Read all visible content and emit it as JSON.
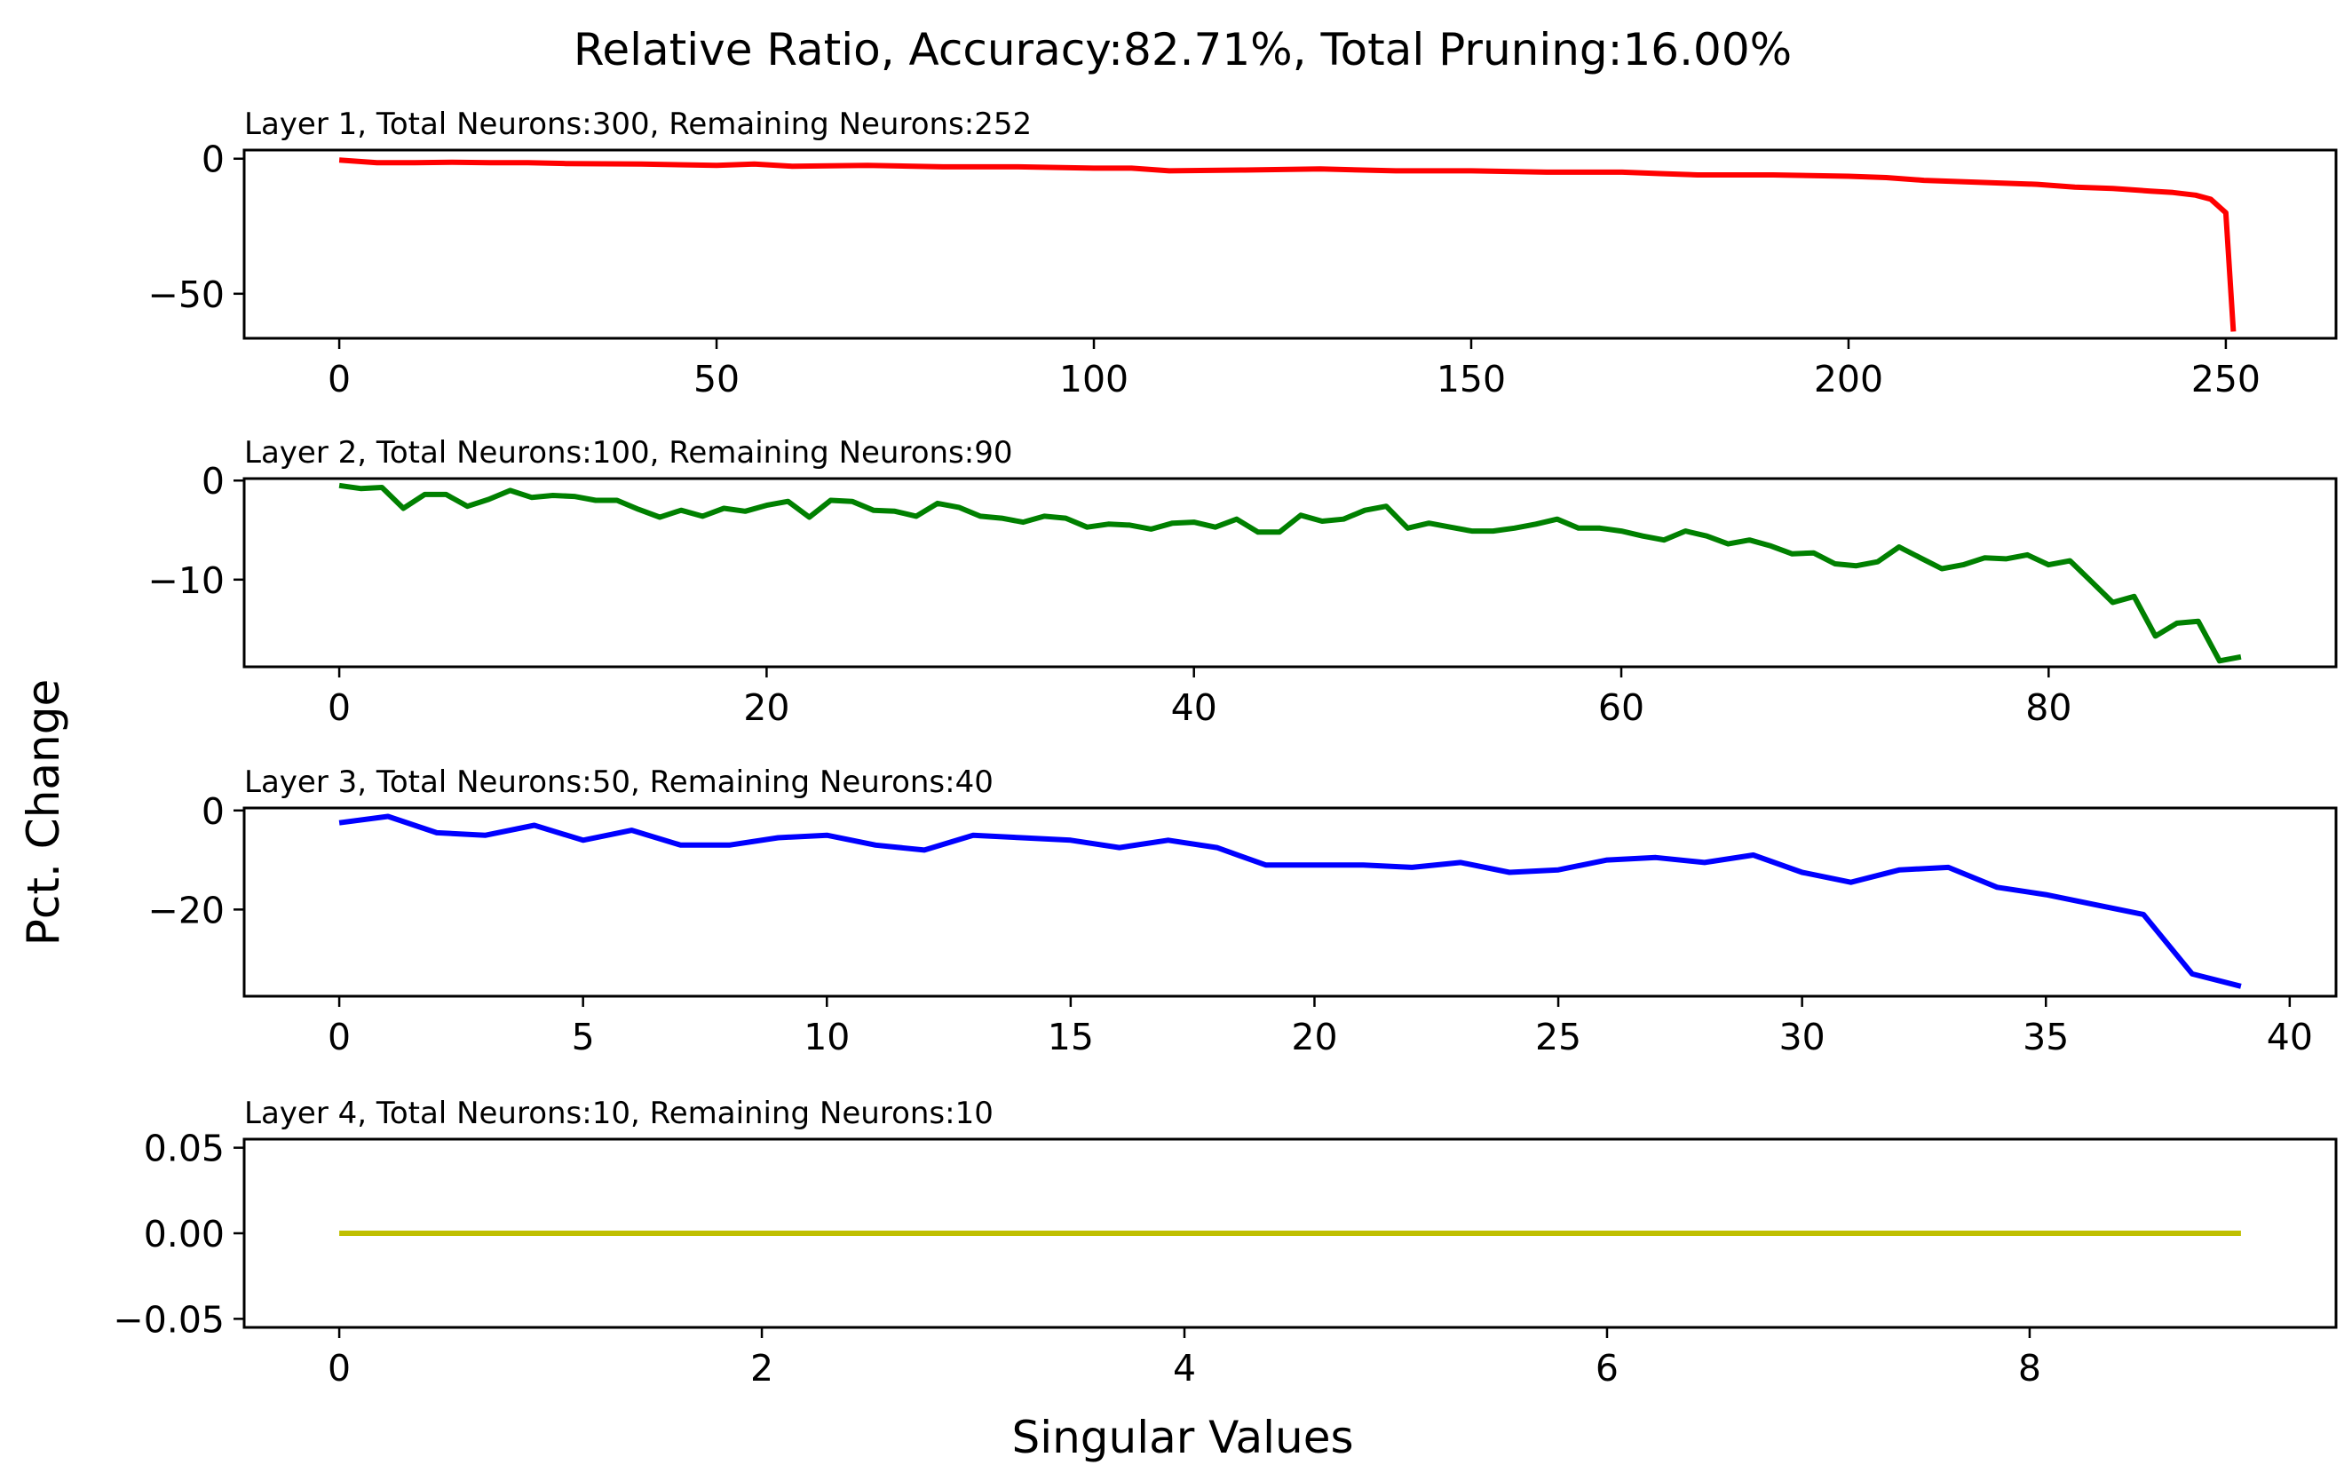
{
  "figure": {
    "title": "Relative Ratio, Accuracy:82.71%, Total Pruning:16.00%",
    "xlabel": "Singular Values",
    "ylabel": "Pct. Change"
  },
  "chart_data": [
    {
      "type": "line",
      "title": "Layer 1, Total Neurons:300, Remaining Neurons:252",
      "color": "#ff0000",
      "xlim": [
        -12.6,
        264.6
      ],
      "ylim": [
        -66.5,
        3.2
      ],
      "xticks": [
        0,
        50,
        100,
        150,
        200,
        250
      ],
      "yticks": [
        0,
        -50
      ],
      "ytick_labels": [
        "0",
        "−50"
      ],
      "points": [
        [
          0,
          -0.5
        ],
        [
          5,
          -1.5
        ],
        [
          10,
          -1.5
        ],
        [
          15,
          -1.3
        ],
        [
          20,
          -1.5
        ],
        [
          25,
          -1.5
        ],
        [
          30,
          -1.8
        ],
        [
          40,
          -2.0
        ],
        [
          50,
          -2.5
        ],
        [
          55,
          -2.0
        ],
        [
          60,
          -2.8
        ],
        [
          70,
          -2.5
        ],
        [
          80,
          -3.0
        ],
        [
          90,
          -3.0
        ],
        [
          100,
          -3.5
        ],
        [
          105,
          -3.5
        ],
        [
          110,
          -4.5
        ],
        [
          120,
          -4.2
        ],
        [
          130,
          -3.8
        ],
        [
          140,
          -4.5
        ],
        [
          150,
          -4.5
        ],
        [
          160,
          -5.0
        ],
        [
          170,
          -5.0
        ],
        [
          175,
          -5.5
        ],
        [
          180,
          -6.0
        ],
        [
          190,
          -6.0
        ],
        [
          200,
          -6.5
        ],
        [
          205,
          -7.0
        ],
        [
          210,
          -8.0
        ],
        [
          215,
          -8.5
        ],
        [
          220,
          -9.0
        ],
        [
          225,
          -9.5
        ],
        [
          230,
          -10.5
        ],
        [
          235,
          -11.0
        ],
        [
          240,
          -12.0
        ],
        [
          243,
          -12.5
        ],
        [
          246,
          -13.5
        ],
        [
          248,
          -15.0
        ],
        [
          250,
          -20.0
        ],
        [
          251,
          -64.0
        ]
      ]
    },
    {
      "type": "line",
      "title": "Layer 2, Total Neurons:100, Remaining Neurons:90",
      "color": "#008000",
      "xlim": [
        -4.45,
        93.45
      ],
      "ylim": [
        -18.8,
        0.2
      ],
      "xticks": [
        0,
        20,
        40,
        60,
        80
      ],
      "yticks": [
        0,
        -10
      ],
      "ytick_labels": [
        "0",
        "−10"
      ],
      "x": [
        0,
        1,
        2,
        3,
        4,
        5,
        6,
        7,
        8,
        9,
        10,
        11,
        12,
        13,
        14,
        15,
        16,
        17,
        18,
        19,
        20,
        21,
        22,
        23,
        24,
        25,
        26,
        27,
        28,
        29,
        30,
        31,
        32,
        33,
        34,
        35,
        36,
        37,
        38,
        39,
        40,
        41,
        42,
        43,
        44,
        45,
        46,
        47,
        48,
        49,
        50,
        51,
        52,
        53,
        54,
        55,
        56,
        57,
        58,
        59,
        60,
        61,
        62,
        63,
        64,
        65,
        66,
        67,
        68,
        69,
        70,
        71,
        72,
        73,
        74,
        75,
        76,
        77,
        78,
        79,
        80,
        81,
        82,
        83,
        84,
        85,
        86,
        87,
        88,
        89
      ],
      "y": [
        -0.5,
        -0.8,
        -0.7,
        -2.8,
        -1.4,
        -1.4,
        -2.6,
        -1.9,
        -1.0,
        -1.7,
        -1.5,
        -1.6,
        -2.0,
        -2.0,
        -2.9,
        -3.7,
        -3.0,
        -3.6,
        -2.8,
        -3.1,
        -2.5,
        -2.1,
        -3.7,
        -2.0,
        -2.1,
        -3.0,
        -3.1,
        -3.6,
        -2.3,
        -2.7,
        -3.6,
        -3.8,
        -4.2,
        -3.6,
        -3.8,
        -4.7,
        -4.4,
        -4.5,
        -4.9,
        -4.3,
        -4.2,
        -4.7,
        -3.9,
        -5.2,
        -5.2,
        -3.5,
        -4.1,
        -3.9,
        -3.0,
        -2.6,
        -4.8,
        -4.3,
        -4.7,
        -5.1,
        -5.1,
        -4.8,
        -4.4,
        -3.9,
        -4.8,
        -4.8,
        -5.1,
        -5.6,
        -6.0,
        -5.1,
        -5.6,
        -6.4,
        -6.0,
        -6.6,
        -7.4,
        -7.3,
        -8.4,
        -8.6,
        -8.2,
        -6.7,
        -7.8,
        -8.9,
        -8.5,
        -7.8,
        -7.9,
        -7.5,
        -8.5,
        -8.1,
        -10.2,
        -12.3,
        -11.7,
        -15.7,
        -14.4,
        -14.2,
        -18.2,
        -17.8
      ]
    },
    {
      "type": "line",
      "title": "Layer 3, Total Neurons:50, Remaining Neurons:40",
      "color": "#0000ff",
      "xlim": [
        -1.95,
        40.95
      ],
      "ylim": [
        -37.5,
        0.5
      ],
      "xticks": [
        0,
        5,
        10,
        15,
        20,
        25,
        30,
        35,
        40
      ],
      "yticks": [
        0,
        -20
      ],
      "ytick_labels": [
        "0",
        "−20"
      ],
      "x": [
        0,
        1,
        2,
        3,
        4,
        5,
        6,
        7,
        8,
        9,
        10,
        11,
        12,
        13,
        14,
        15,
        16,
        17,
        18,
        19,
        20,
        21,
        22,
        23,
        24,
        25,
        26,
        27,
        28,
        29,
        30,
        31,
        32,
        33,
        34,
        35,
        36,
        37,
        38,
        39
      ],
      "y": [
        -2.5,
        -1.2,
        -4.5,
        -5.0,
        -3.0,
        -6.0,
        -4.0,
        -7.0,
        -7.0,
        -5.5,
        -5.0,
        -7.0,
        -8.0,
        -5.0,
        -5.5,
        -6.0,
        -7.5,
        -6.0,
        -7.5,
        -11.0,
        -11.0,
        -11.0,
        -11.5,
        -10.5,
        -12.5,
        -12.0,
        -10.0,
        -9.5,
        -10.5,
        -9.0,
        -12.5,
        -14.5,
        -12.0,
        -11.5,
        -15.5,
        -17.0,
        -19.0,
        -21.0,
        -33.0,
        -35.5
      ]
    },
    {
      "type": "line",
      "title": "Layer 4, Total Neurons:10, Remaining Neurons:10",
      "color": "#bfbf00",
      "xlim": [
        -0.45,
        9.45
      ],
      "ylim": [
        -0.055,
        0.055
      ],
      "xticks": [
        0,
        2,
        4,
        6,
        8
      ],
      "yticks": [
        0.05,
        0.0,
        -0.05
      ],
      "ytick_labels": [
        "0.05",
        "0.00",
        "−0.05"
      ],
      "x": [
        0,
        1,
        2,
        3,
        4,
        5,
        6,
        7,
        8,
        9
      ],
      "y": [
        0,
        0,
        0,
        0,
        0,
        0,
        0,
        0,
        0,
        0
      ]
    }
  ]
}
